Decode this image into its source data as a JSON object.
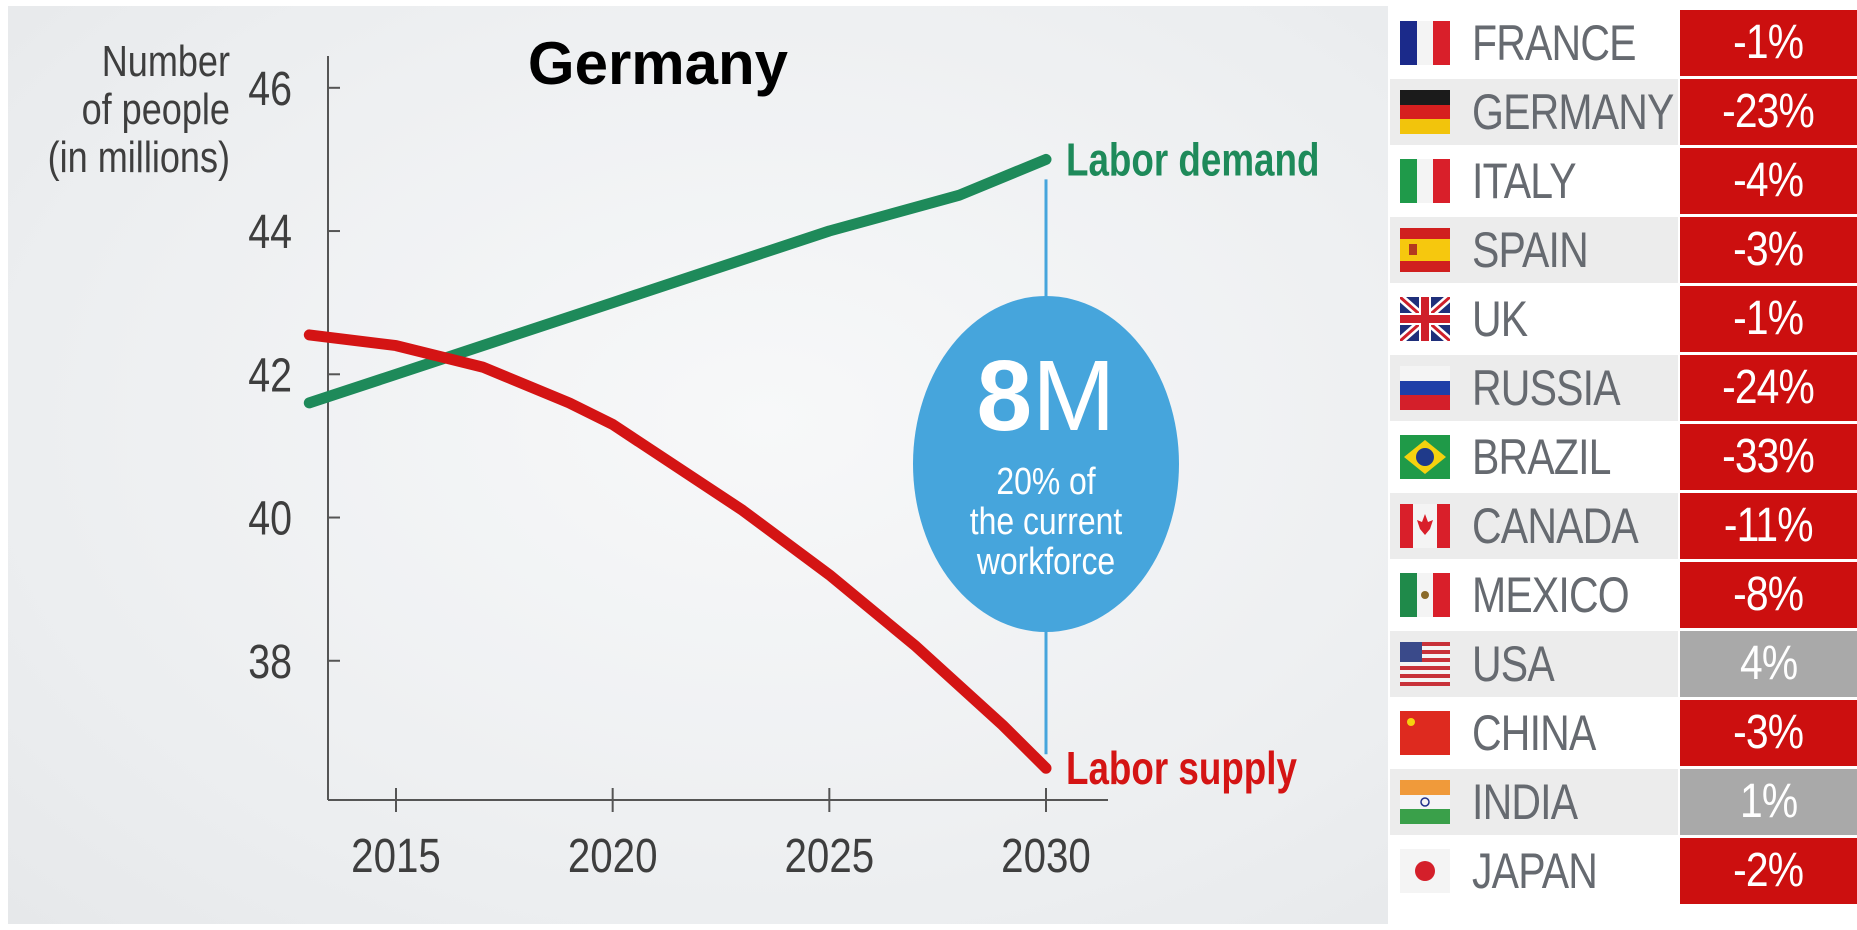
{
  "chart_data": {
    "type": "line",
    "title": "Germany",
    "ylabel": [
      "Number",
      "of people",
      "(in millions)"
    ],
    "x_ticks": [
      2015,
      2020,
      2025,
      2030
    ],
    "y_ticks": [
      38,
      40,
      42,
      44,
      46
    ],
    "xlim": [
      2012,
      2030
    ],
    "ylim": [
      36.0,
      46.5
    ],
    "series": [
      {
        "name": "Labor demand",
        "color": "#1e8a5a",
        "points": [
          [
            2013,
            41.6
          ],
          [
            2015,
            42.0
          ],
          [
            2017,
            42.4
          ],
          [
            2020,
            43.0
          ],
          [
            2022,
            43.4
          ],
          [
            2025,
            44.0
          ],
          [
            2028,
            44.5
          ],
          [
            2030,
            45.0
          ]
        ]
      },
      {
        "name": "Labor supply",
        "color": "#d41414",
        "points": [
          [
            2013,
            42.55
          ],
          [
            2015,
            42.4
          ],
          [
            2017,
            42.1
          ],
          [
            2019,
            41.6
          ],
          [
            2020,
            41.3
          ],
          [
            2021,
            40.9
          ],
          [
            2023,
            40.1
          ],
          [
            2025,
            39.2
          ],
          [
            2027,
            38.2
          ],
          [
            2029,
            37.1
          ],
          [
            2030,
            36.5
          ]
        ]
      }
    ],
    "annotation": {
      "x": 2030,
      "big_number": "8",
      "big_unit": "M",
      "lines": [
        "20% of",
        "the current",
        "workforce"
      ],
      "color": "#46a5dc"
    }
  },
  "table": {
    "rows": [
      {
        "country": "FRANCE",
        "value": "-1%",
        "status": "negative",
        "flag": "france-flag"
      },
      {
        "country": "GERMANY",
        "value": "-23%",
        "status": "negative",
        "flag": "germany-flag"
      },
      {
        "country": "ITALY",
        "value": "-4%",
        "status": "negative",
        "flag": "italy-flag"
      },
      {
        "country": "SPAIN",
        "value": "-3%",
        "status": "negative",
        "flag": "spain-flag"
      },
      {
        "country": "UK",
        "value": "-1%",
        "status": "negative",
        "flag": "uk-flag"
      },
      {
        "country": "RUSSIA",
        "value": "-24%",
        "status": "negative",
        "flag": "russia-flag"
      },
      {
        "country": "BRAZIL",
        "value": "-33%",
        "status": "negative",
        "flag": "brazil-flag"
      },
      {
        "country": "CANADA",
        "value": "-11%",
        "status": "negative",
        "flag": "canada-flag"
      },
      {
        "country": "MEXICO",
        "value": "-8%",
        "status": "negative",
        "flag": "mexico-flag"
      },
      {
        "country": "USA",
        "value": "4%",
        "status": "positive",
        "flag": "usa-flag"
      },
      {
        "country": "CHINA",
        "value": "-3%",
        "status": "negative",
        "flag": "china-flag"
      },
      {
        "country": "INDIA",
        "value": "1%",
        "status": "positive",
        "flag": "india-flag"
      },
      {
        "country": "JAPAN",
        "value": "-2%",
        "status": "negative",
        "flag": "japan-flag"
      }
    ],
    "colors": {
      "negative": "#cc0f0f",
      "positive": "#a9a9a9",
      "row_light": "#ffffff",
      "row_shade": "#ececec"
    }
  }
}
